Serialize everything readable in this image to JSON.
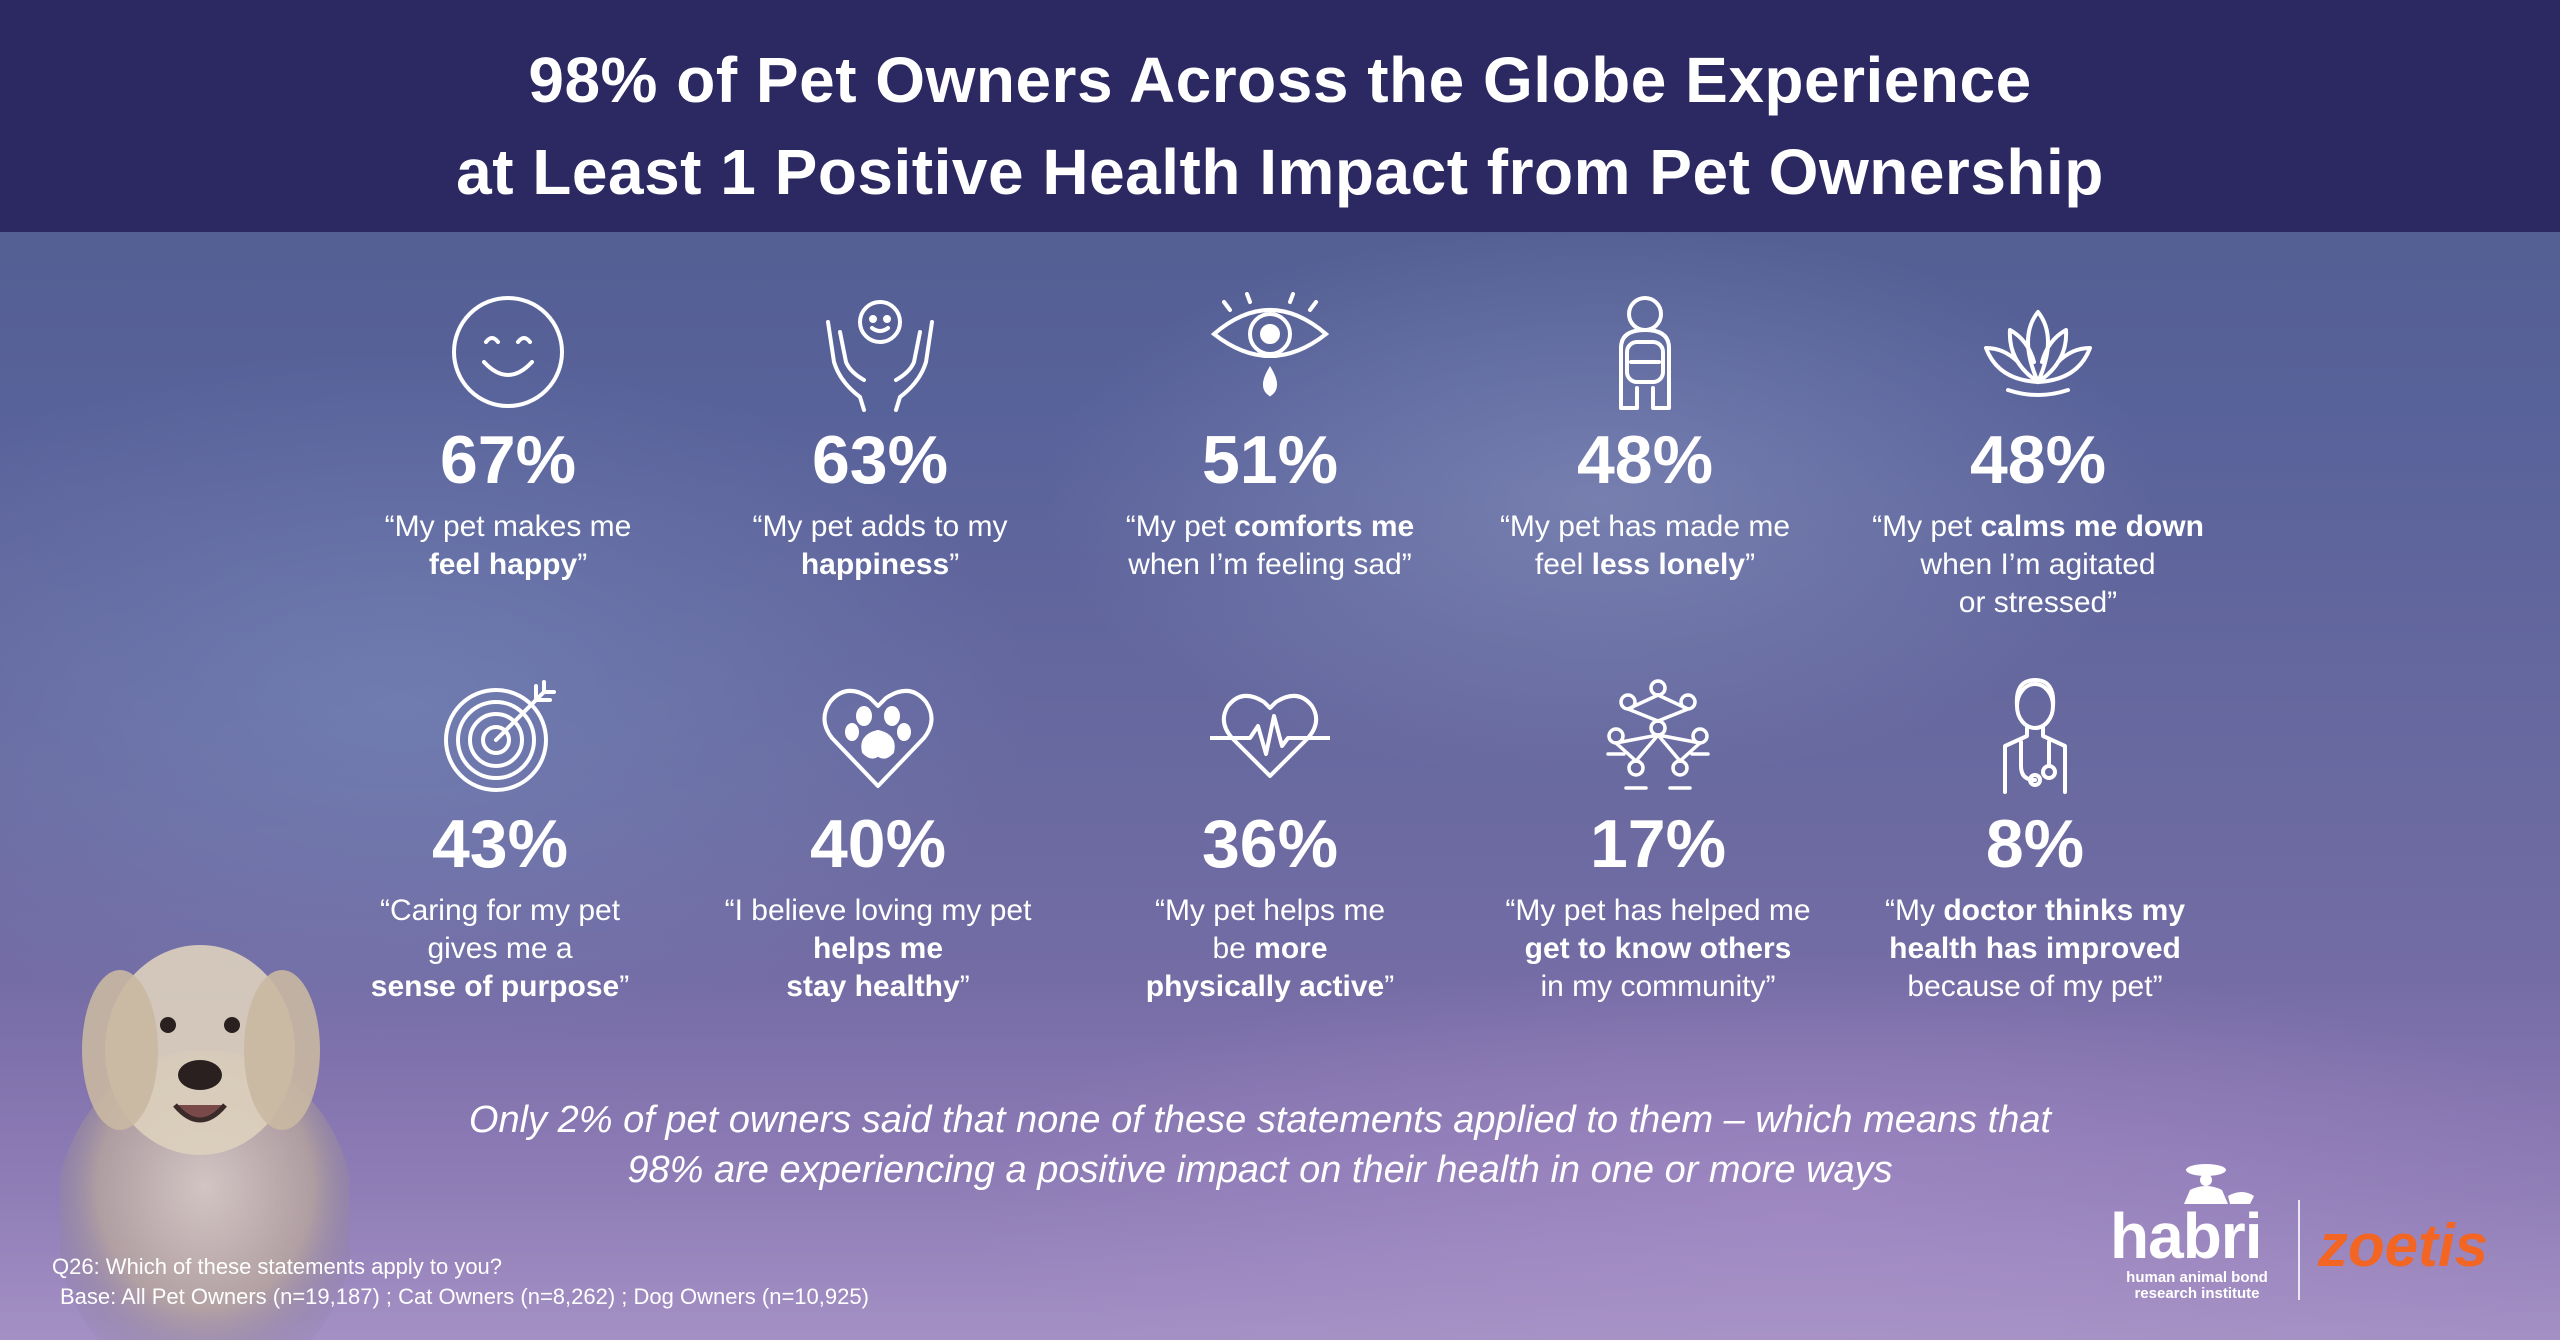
{
  "title": {
    "line1": "98% of Pet Owners Across the Globe Experience",
    "line2": "at Least 1 Positive Health Impact from Pet Ownership"
  },
  "stats": [
    {
      "icon": "smiley-face-icon",
      "pct": "67%",
      "quote_pre": "“My pet makes me",
      "quote_bold": "feel happy",
      "quote_post": "”"
    },
    {
      "icon": "hands-holding-person-icon",
      "pct": "63%",
      "quote_pre": "“My pet adds to my",
      "quote_bold": "happiness",
      "quote_post": "”"
    },
    {
      "icon": "crying-eye-icon",
      "pct": "51%",
      "quote_pre": "“My pet",
      "quote_bold": "comforts me",
      "quote_post": "when I’m feeling sad”"
    },
    {
      "icon": "lonely-person-icon",
      "pct": "48%",
      "quote_pre": "“My pet has made me",
      "quote_mid": "feel",
      "quote_bold": "less lonely",
      "quote_post": "”"
    },
    {
      "icon": "lotus-icon",
      "pct": "48%",
      "quote_pre": "“My pet",
      "quote_bold": "calms me down",
      "quote_post": "when I’m agitated",
      "quote_post2": "or stressed”"
    },
    {
      "icon": "target-icon",
      "pct": "43%",
      "quote_pre": "“Caring for my pet",
      "quote_mid": "gives me a",
      "quote_bold": "sense of purpose",
      "quote_post": "”"
    },
    {
      "icon": "paw-heart-icon",
      "pct": "40%",
      "quote_pre": "“I believe loving my pet",
      "quote_bold": "helps me",
      "quote_bold2": "stay healthy",
      "quote_post": "”"
    },
    {
      "icon": "heartbeat-icon",
      "pct": "36%",
      "quote_pre": "“My pet helps me",
      "quote_mid": "be",
      "quote_bold": "more",
      "quote_bold2": "physically active",
      "quote_post": "”"
    },
    {
      "icon": "community-network-icon",
      "pct": "17%",
      "quote_pre": "“My pet has helped me",
      "quote_bold": "get to know others",
      "quote_post": "in my community”"
    },
    {
      "icon": "doctor-icon",
      "pct": "8%",
      "quote_pre": "“My",
      "quote_bold": "doctor thinks my",
      "quote_bold2": "health has improved",
      "quote_post": "because of my pet”"
    }
  ],
  "summary": {
    "line1": "Only 2% of pet owners said that none of these statements applied to them – which means that",
    "line2": "98%  are experiencing a positive impact on their health in one or more ways"
  },
  "footnote": {
    "question": "Q26:  Which of these statements apply to you?",
    "base": "Base: All Pet Owners (n=19,187) ; Cat Owners (n=8,262) ; Dog Owners (n=10,925)"
  },
  "logos": {
    "habri": "habri",
    "habri_sub1": "human animal bond",
    "habri_sub2": "research institute",
    "zoetis": "zoetis"
  },
  "colors": {
    "header_bg": "#2b2862",
    "text": "#ffffff",
    "zoetis_orange": "#f26522"
  }
}
